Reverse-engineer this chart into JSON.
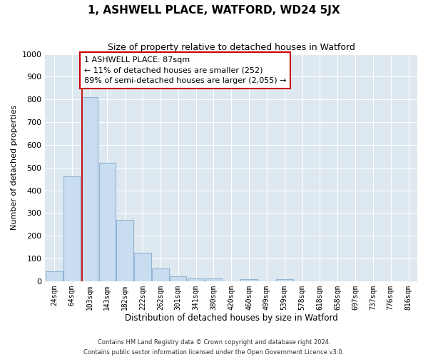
{
  "title": "1, ASHWELL PLACE, WATFORD, WD24 5JX",
  "subtitle": "Size of property relative to detached houses in Watford",
  "xlabel": "Distribution of detached houses by size in Watford",
  "ylabel": "Number of detached properties",
  "bar_labels": [
    "24sqm",
    "64sqm",
    "103sqm",
    "143sqm",
    "182sqm",
    "222sqm",
    "262sqm",
    "301sqm",
    "341sqm",
    "380sqm",
    "420sqm",
    "460sqm",
    "499sqm",
    "539sqm",
    "578sqm",
    "618sqm",
    "658sqm",
    "697sqm",
    "737sqm",
    "776sqm",
    "816sqm"
  ],
  "bar_values": [
    45,
    460,
    810,
    520,
    270,
    125,
    57,
    22,
    13,
    13,
    0,
    10,
    0,
    9,
    0,
    0,
    0,
    0,
    0,
    0,
    0
  ],
  "bar_color": "#c9ddf0",
  "bar_edge_color": "#92b4d4",
  "bg_color": "#dde8f0",
  "ylim": [
    0,
    1000
  ],
  "yticks": [
    0,
    100,
    200,
    300,
    400,
    500,
    600,
    700,
    800,
    900,
    1000
  ],
  "annotation_title": "1 ASHWELL PLACE: 87sqm",
  "annotation_line1": "← 11% of detached houses are smaller (252)",
  "annotation_line2": "89% of semi-detached houses are larger (2,055) →",
  "red_line_x": 1.59,
  "footnote1": "Contains HM Land Registry data © Crown copyright and database right 2024.",
  "footnote2": "Contains public sector information licensed under the Open Government Licence v3.0."
}
